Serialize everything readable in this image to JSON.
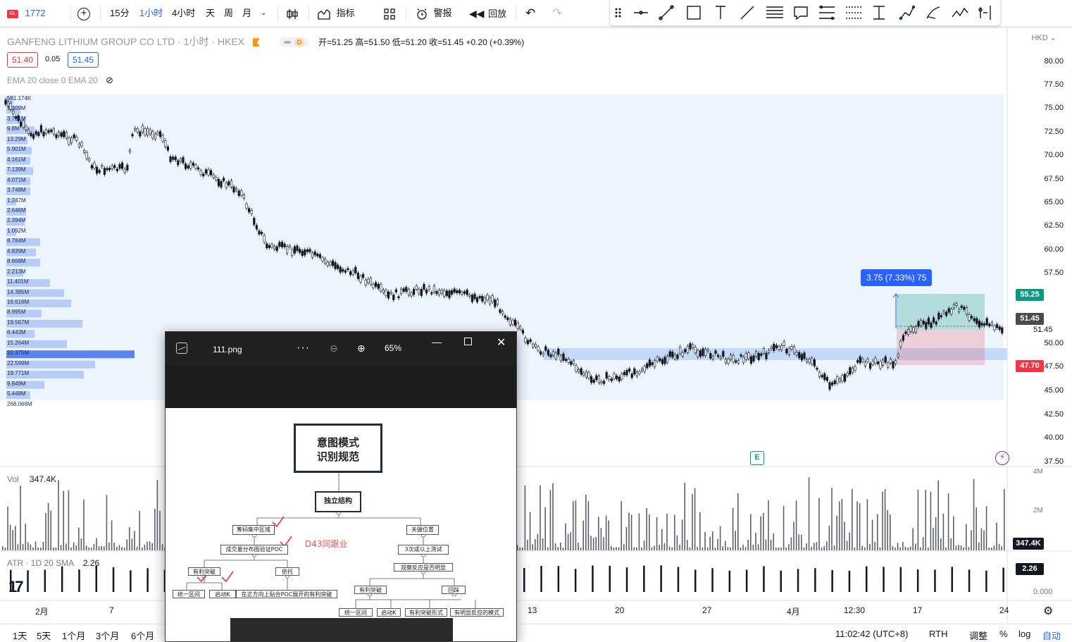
{
  "topbar": {
    "symbol": "1772",
    "add_symbol": "+",
    "intervals": [
      "15分",
      "1小时",
      "4小时",
      "天",
      "周",
      "月"
    ],
    "active_interval": "1小时",
    "indicators": "指标",
    "alerts": "警报",
    "replay": "回放"
  },
  "legend": {
    "title": "GANFENG LITHIUM GROUP CO LTD · 1小时 · HKEX",
    "d_badge": "D",
    "ohlc": "开=51.25  高=51.50  低=51.20  收=51.45  +0.20 (+0.39%)",
    "bid": "51.40",
    "spread": "0.05",
    "ask": "51.45",
    "ema": "EMA 20 close 0 EMA 20"
  },
  "axis": {
    "currency": "HKD",
    "prices": [
      "80.00",
      "77.50",
      "75.00",
      "72.50",
      "70.00",
      "67.50",
      "65.00",
      "62.50",
      "60.00",
      "57.50",
      "50.00",
      "47.50",
      "45.00",
      "42.50",
      "40.00",
      "37.50"
    ],
    "tag_target": "55.25",
    "tag_current": "51.45",
    "tag_current_small": "51.45",
    "tag_stop": "47.70",
    "vol_ticks": [
      "4M",
      "2M"
    ],
    "vol_tag": "347.4K",
    "atr_tag": "2.26",
    "atr_zero": "0.000"
  },
  "measure": {
    "label": "3.75 (7.33%) 75"
  },
  "volume_profile": [
    "561.174K",
    "1.309M",
    "3.751M",
    "9.8M",
    "13.29M",
    "5.901M",
    "4.161M",
    "7.139M",
    "4.071M",
    "3.748M",
    "1.247M",
    "2.646M",
    "2.394M",
    "1.092M",
    "8.784M",
    "4.839M",
    "8.668M",
    "2.213M",
    "11.401M",
    "14.385M",
    "16.616M",
    "8.995M",
    "19.567M",
    "6.443M",
    "15.264M",
    "32.375M",
    "22.599M",
    "19.771M",
    "9.849M",
    "5.448M",
    "268.066M"
  ],
  "volume_pane": {
    "label": "Vol",
    "value": "347.4K"
  },
  "atr_pane": {
    "label": "ATR · 1D 20 SMA",
    "value": "2.26"
  },
  "time_axis": [
    "2月",
    "7",
    "13",
    "20",
    "27",
    "4月",
    "12:30",
    "17",
    "24"
  ],
  "bottombar": {
    "ranges": [
      "1天",
      "5天",
      "1个月",
      "3个月",
      "6个月"
    ],
    "clock": "11:02:42 (UTC+8)",
    "rth": "RTH",
    "adjust": "调整",
    "percent": "%",
    "log": "log",
    "auto": "自动"
  },
  "viewer": {
    "filename": "111.png",
    "zoom": "65%",
    "mindmap": {
      "title_line1": "意图模式",
      "title_line2": "识别规范",
      "root": "独立结构",
      "l_a": "筹码集中区域",
      "l_b": "成交量分布图验证POC",
      "l_c": "有利突破",
      "l_d": "依托",
      "l_e": "统一区间",
      "l_f": "启动K",
      "l_g": "在正方向上贴合POC展开的有利突破",
      "r_a": "关键位置",
      "r_b": "3次或以上测试",
      "r_c": "观察反应是否明显",
      "r_d": "有利突破",
      "r_e": "回踩",
      "r_f": "统一区间",
      "r_g": "启动K",
      "r_h": "有利突破形式",
      "r_i": "有明显反应的模式",
      "annotation": "D43同跟业"
    }
  },
  "colors": {
    "accent": "#2962ff",
    "up": "#089981",
    "down": "#f23645"
  }
}
